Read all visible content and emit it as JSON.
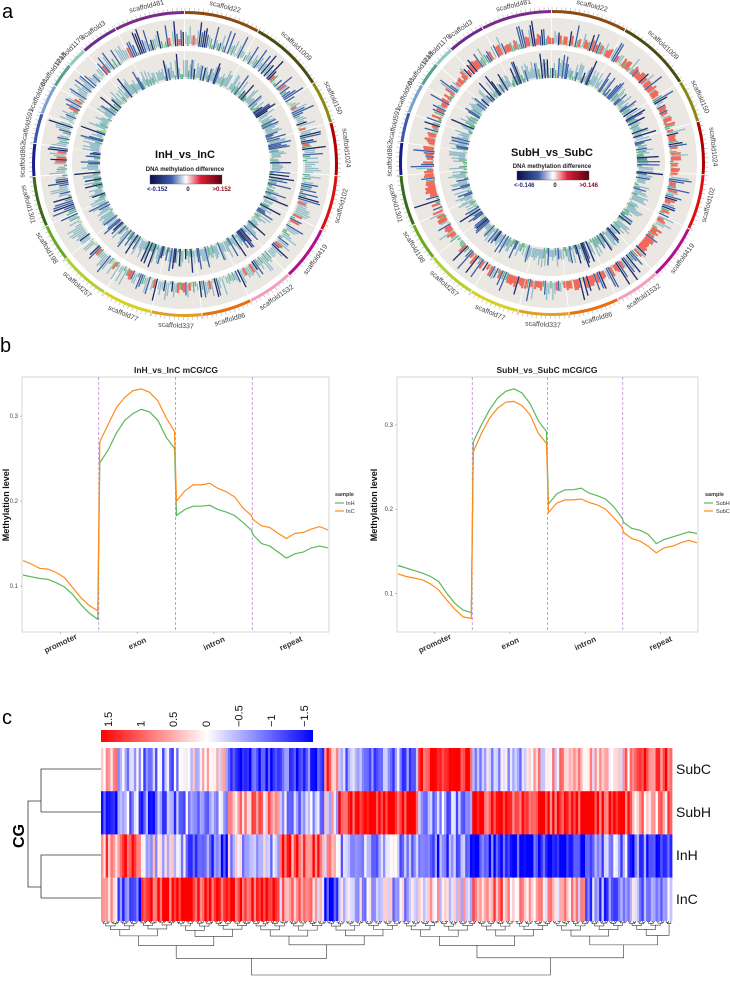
{
  "panels": {
    "a": "a",
    "b": "b",
    "c": "c"
  },
  "palette": {
    "navy": "#1b2a6b",
    "blue": "#3d5fa8",
    "teal": "#4f8fa6",
    "light_teal": "#8fbcc8",
    "green": "#5fb08a",
    "light_green": "#a8d8a0",
    "red": "#ef6a5a",
    "track_bg": "#ebe8e3",
    "line_green": "#5cb85c",
    "line_orange": "#ff8c1a",
    "divider": "#c77dde",
    "heat_low": "#0000ff",
    "heat_mid": "#ffffff",
    "heat_high": "#ff0000"
  },
  "chart_data": [
    {
      "type": "circos",
      "title": "InH_vs_InC",
      "colorbar": {
        "title": "DNA methylation difference",
        "min_label": "<-0.152",
        "mid_label": "0",
        "max_label": ">0.152"
      },
      "scaffolds": [
        {
          "name": "scaffold481",
          "color": "#7a2a8a"
        },
        {
          "name": "scaffold22",
          "color": "#8a4a10"
        },
        {
          "name": "scaffold1009",
          "color": "#4a4a12"
        },
        {
          "name": "scaffold150",
          "color": "#8a8a10"
        },
        {
          "name": "scaffold1024",
          "color": "#b00000"
        },
        {
          "name": "scaffold102",
          "color": "#e01010"
        },
        {
          "name": "scaffold419",
          "color": "#b0108a"
        },
        {
          "name": "scaffold1532",
          "color": "#f0a0c0"
        },
        {
          "name": "scaffold86",
          "color": "#e87010"
        },
        {
          "name": "scaffold337",
          "color": "#e0a020"
        },
        {
          "name": "scaffold77",
          "color": "#d8d020"
        },
        {
          "name": "scaffold257",
          "color": "#b0d030"
        },
        {
          "name": "scaffold198",
          "color": "#6aaa20"
        },
        {
          "name": "scaffold1301",
          "color": "#3a6a18"
        },
        {
          "name": "scaffold862",
          "color": "#1a1a8a"
        },
        {
          "name": "scaffold591",
          "color": "#3a5aa8"
        },
        {
          "name": "scaffold601",
          "color": "#7aa0d0"
        },
        {
          "name": "scaffold1213",
          "color": "#5aa090"
        },
        {
          "name": "scaffold1179",
          "color": "#90c8c0"
        },
        {
          "name": "scaffold3",
          "color": "#6a2a90"
        }
      ]
    },
    {
      "type": "circos",
      "title": "SubH_vs_SubC",
      "colorbar": {
        "title": "DNA methylation difference",
        "min_label": "<-0.146",
        "mid_label": "0",
        "max_label": ">0.146"
      },
      "scaffolds": [
        {
          "name": "scaffold481",
          "color": "#7a2a8a"
        },
        {
          "name": "scaffold22",
          "color": "#8a4a10"
        },
        {
          "name": "scaffold1009",
          "color": "#4a4a12"
        },
        {
          "name": "scaffold150",
          "color": "#8a8a10"
        },
        {
          "name": "scaffold1024",
          "color": "#b00000"
        },
        {
          "name": "scaffold102",
          "color": "#e01010"
        },
        {
          "name": "scaffold419",
          "color": "#b0108a"
        },
        {
          "name": "scaffold1532",
          "color": "#f0a0c0"
        },
        {
          "name": "scaffold86",
          "color": "#e87010"
        },
        {
          "name": "scaffold337",
          "color": "#e0a020"
        },
        {
          "name": "scaffold77",
          "color": "#d8d020"
        },
        {
          "name": "scaffold257",
          "color": "#b0d030"
        },
        {
          "name": "scaffold198",
          "color": "#6aaa20"
        },
        {
          "name": "scaffold1301",
          "color": "#3a6a18"
        },
        {
          "name": "scaffold862",
          "color": "#1a1a8a"
        },
        {
          "name": "scaffold591",
          "color": "#3a5aa8"
        },
        {
          "name": "scaffold601",
          "color": "#7aa0d0"
        },
        {
          "name": "scaffold1213",
          "color": "#5aa090"
        },
        {
          "name": "scaffold1179",
          "color": "#90c8c0"
        },
        {
          "name": "scaffold3",
          "color": "#6a2a90"
        }
      ]
    },
    {
      "type": "line",
      "title": "InH_vs_InC mCG/CG",
      "ylabel": "Methylation level",
      "categories": [
        "promoter",
        "exon",
        "intron",
        "repeat"
      ],
      "yticks": [
        "0.1",
        "0.2",
        "0.3"
      ],
      "ylim": [
        0.046,
        0.346
      ],
      "legend": {
        "title": "sample",
        "placement": "right"
      },
      "series": [
        {
          "name": "InH",
          "color": "#5cb85c",
          "values": {
            "promoter": [
              0.113,
              0.111,
              0.109,
              0.108,
              0.104,
              0.099,
              0.09,
              0.078,
              0.068,
              0.061
            ],
            "exon": [
              0.245,
              0.26,
              0.28,
              0.295,
              0.303,
              0.308,
              0.305,
              0.295,
              0.275,
              0.262
            ],
            "intron": [
              0.183,
              0.19,
              0.194,
              0.194,
              0.195,
              0.19,
              0.187,
              0.183,
              0.175,
              0.166
            ],
            "repeat": [
              0.16,
              0.15,
              0.147,
              0.14,
              0.133,
              0.138,
              0.14,
              0.145,
              0.147,
              0.145
            ]
          }
        },
        {
          "name": "InC",
          "color": "#ff8c1a",
          "values": {
            "promoter": [
              0.13,
              0.126,
              0.121,
              0.12,
              0.116,
              0.11,
              0.098,
              0.086,
              0.077,
              0.071
            ],
            "exon": [
              0.27,
              0.29,
              0.31,
              0.322,
              0.33,
              0.332,
              0.328,
              0.318,
              0.298,
              0.282
            ],
            "intron": [
              0.2,
              0.212,
              0.219,
              0.219,
              0.221,
              0.215,
              0.211,
              0.205,
              0.192,
              0.183
            ],
            "repeat": [
              0.178,
              0.171,
              0.169,
              0.162,
              0.156,
              0.162,
              0.163,
              0.167,
              0.17,
              0.166
            ]
          }
        }
      ]
    },
    {
      "type": "line",
      "title": "SubH_vs_SubC mCG/CG",
      "ylabel": "Methylation level",
      "categories": [
        "promoter",
        "exon",
        "intron",
        "repeat"
      ],
      "yticks": [
        "0.1",
        "0.2",
        "0.3"
      ],
      "ylim": [
        0.054,
        0.357
      ],
      "legend": {
        "title": "sample",
        "placement": "right"
      },
      "series": [
        {
          "name": "SubH",
          "color": "#5cb85c",
          "values": {
            "promoter": [
              0.133,
              0.13,
              0.127,
              0.124,
              0.12,
              0.114,
              0.1,
              0.088,
              0.08,
              0.077
            ],
            "exon": [
              0.28,
              0.3,
              0.318,
              0.332,
              0.34,
              0.343,
              0.338,
              0.325,
              0.305,
              0.292
            ],
            "intron": [
              0.206,
              0.218,
              0.223,
              0.223,
              0.225,
              0.219,
              0.216,
              0.212,
              0.203,
              0.19
            ],
            "repeat": [
              0.184,
              0.177,
              0.175,
              0.17,
              0.159,
              0.164,
              0.167,
              0.17,
              0.173,
              0.171
            ]
          }
        },
        {
          "name": "SubC",
          "color": "#ff8c1a",
          "values": {
            "promoter": [
              0.123,
              0.12,
              0.118,
              0.116,
              0.111,
              0.104,
              0.092,
              0.081,
              0.072,
              0.07
            ],
            "exon": [
              0.268,
              0.29,
              0.308,
              0.32,
              0.327,
              0.328,
              0.323,
              0.312,
              0.29,
              0.278
            ],
            "intron": [
              0.196,
              0.207,
              0.211,
              0.211,
              0.212,
              0.208,
              0.205,
              0.2,
              0.19,
              0.179
            ],
            "repeat": [
              0.172,
              0.165,
              0.162,
              0.156,
              0.148,
              0.154,
              0.156,
              0.16,
              0.163,
              0.16
            ]
          }
        }
      ]
    },
    {
      "type": "heatmap",
      "ylabel": "CG",
      "rows": [
        "SubC",
        "SubH",
        "InH",
        "InC"
      ],
      "colorbar_ticks": [
        "1.5",
        "1",
        "0.5",
        "0",
        "−0.5",
        "−1",
        "−1.5"
      ],
      "range": [
        -1.5,
        1.5
      ],
      "column_blocks": [
        {
          "columns": 7,
          "values": [
            0.3,
            -1.5,
            0.8,
            0.5
          ]
        },
        {
          "columns": 10,
          "values": [
            -0.3,
            -0.6,
            1.2,
            -1.0
          ]
        },
        {
          "columns": 19,
          "values": [
            -0.6,
            -0.8,
            -0.2,
            1.3
          ]
        },
        {
          "columns": 18,
          "values": [
            0.1,
            -0.6,
            -1.0,
            1.3
          ]
        },
        {
          "columns": 22,
          "values": [
            -1.4,
            0.5,
            -0.3,
            1.2
          ]
        },
        {
          "columns": 19,
          "values": [
            -1.1,
            -0.5,
            1.0,
            0.4
          ]
        },
        {
          "columns": 6,
          "values": [
            0.8,
            0.0,
            0.3,
            -1.5
          ]
        },
        {
          "columns": 34,
          "values": [
            -0.7,
            1.4,
            -0.5,
            -0.3
          ]
        },
        {
          "columns": 23,
          "values": [
            1.4,
            -0.6,
            -0.9,
            0.1
          ]
        },
        {
          "columns": 23,
          "values": [
            -0.4,
            1.3,
            -1.3,
            0.6
          ]
        },
        {
          "columns": 25,
          "values": [
            0.3,
            1.2,
            -1.4,
            0.2
          ]
        },
        {
          "columns": 19,
          "values": [
            0.4,
            1.3,
            -0.6,
            -0.8
          ]
        },
        {
          "columns": 18,
          "values": [
            1.2,
            0.6,
            -1.0,
            -0.5
          ]
        }
      ]
    }
  ]
}
